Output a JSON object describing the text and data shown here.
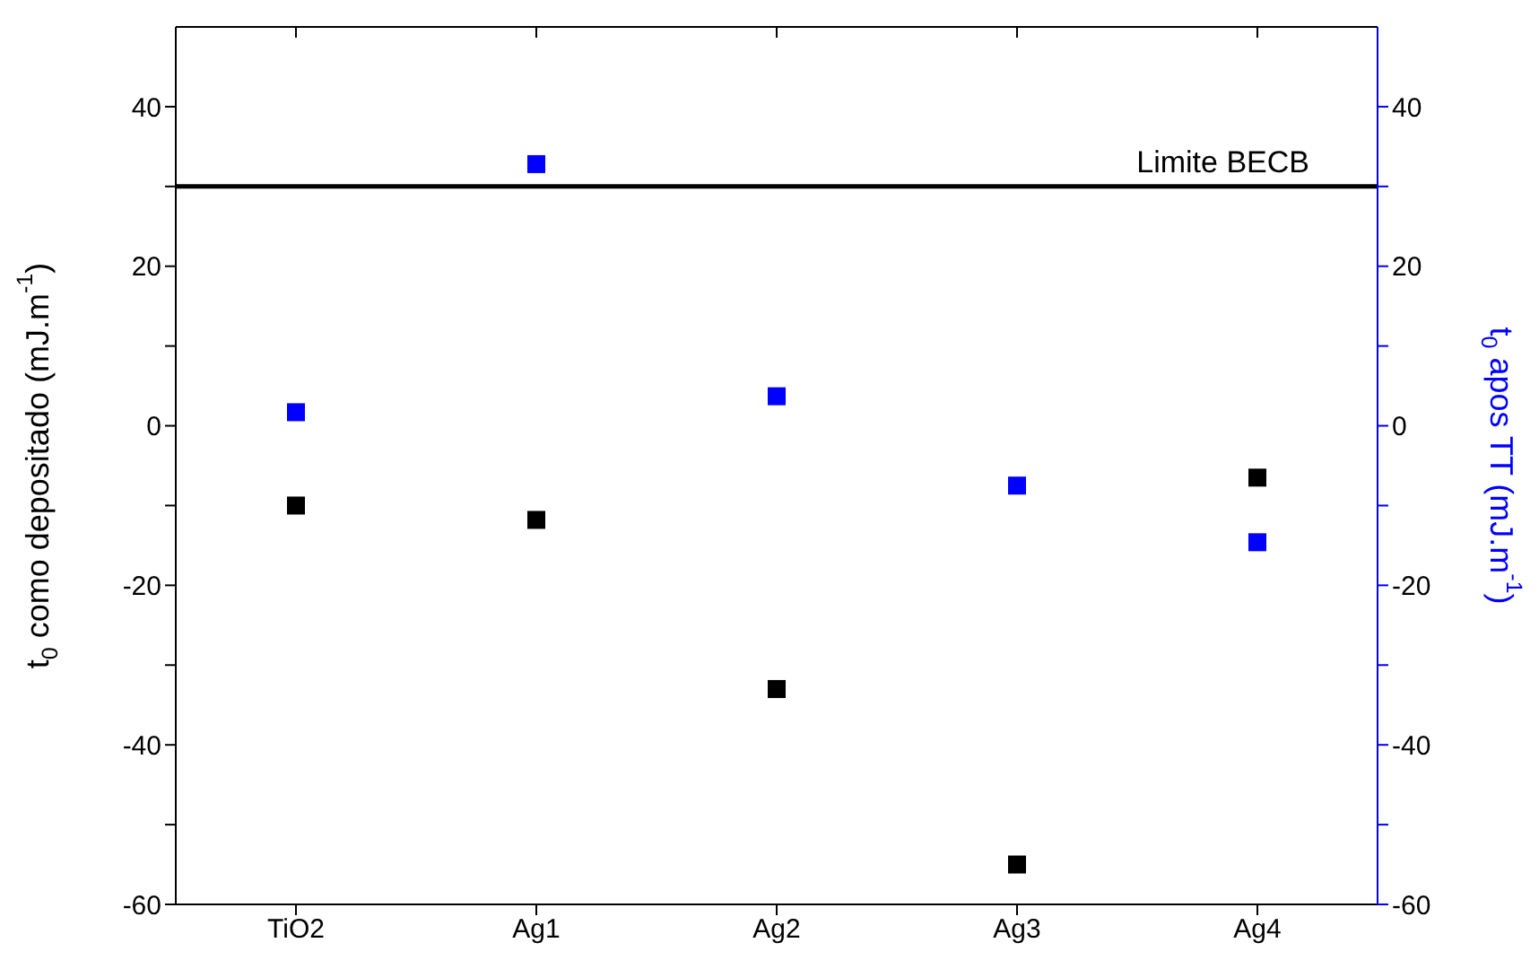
{
  "chart_data": {
    "type": "scatter",
    "categories": [
      "TiO2",
      "Ag1",
      "Ag2",
      "Ag3",
      "Ag4"
    ],
    "ylabel": "t$_{0}$ como depositado (mJ.m$^{-1}$)",
    "y2label": "t$_{0}$ apos TT (mJ.m$^{-1}$)",
    "ylim": [
      -60,
      50
    ],
    "yticks": [
      -60,
      {
        "value": -50,
        "label": null
      },
      -40,
      {
        "value": -30,
        "label": null
      },
      -20,
      {
        "value": -10,
        "label": null
      },
      0,
      {
        "value": 10,
        "label": null
      },
      20,
      {
        "value": 30,
        "label": null
      },
      40
    ],
    "y2lim": [
      -60,
      50
    ],
    "y2ticks": [
      -60,
      {
        "value": -50,
        "label": null
      },
      -40,
      {
        "value": -30,
        "label": null
      },
      -20,
      {
        "value": -10,
        "label": null
      },
      0,
      {
        "value": 10,
        "label": null
      },
      20,
      {
        "value": 30,
        "label": null
      },
      40
    ],
    "series": [
      {
        "color": "#000000",
        "values": [
          -10,
          -11.8,
          -33,
          -55,
          -6.5
        ]
      },
      {
        "color": "#0000ff",
        "axis": "y2",
        "values": [
          1.7,
          32.8,
          3.7,
          -7.5,
          -14.6
        ]
      }
    ],
    "ref_lines": [
      {
        "axis": "y",
        "value": 30,
        "label": "Limite BECB",
        "color": "#000000"
      }
    ],
    "marker": "square"
  }
}
